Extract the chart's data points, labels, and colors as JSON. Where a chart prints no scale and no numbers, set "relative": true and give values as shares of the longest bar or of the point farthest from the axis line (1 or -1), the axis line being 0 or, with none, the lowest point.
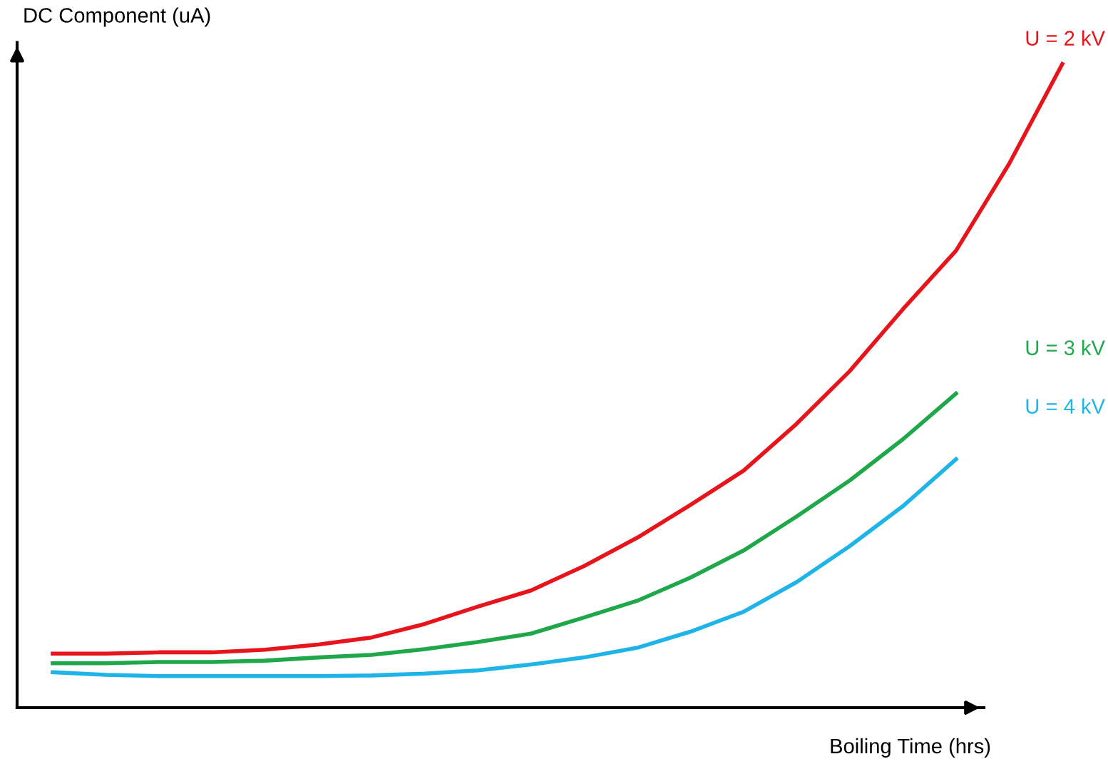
{
  "chart_data": {
    "type": "line",
    "relative": true,
    "xlabel": "Boiling Time (hrs)",
    "ylabel": "DC Component (uA)",
    "legend": false,
    "grid": false,
    "marker": "none",
    "line_style": "solid",
    "categories": [
      null,
      null,
      null,
      null,
      null,
      null,
      null,
      null,
      null,
      null,
      null,
      null,
      null,
      null,
      null,
      null,
      null,
      null,
      null,
      null
    ],
    "series": [
      {
        "name": "U = 2 kV",
        "color": "#e8141b",
        "values": [
          0.084,
          0.084,
          0.086,
          0.086,
          0.09,
          0.098,
          0.109,
          0.13,
          0.157,
          0.182,
          0.22,
          0.264,
          0.315,
          0.368,
          0.441,
          0.523,
          0.619,
          0.71,
          0.845,
          1.0
        ]
      },
      {
        "name": "U = 3 kV",
        "color": "#1fa84a",
        "values": [
          0.069,
          0.069,
          0.071,
          0.071,
          0.073,
          0.078,
          0.082,
          0.091,
          0.102,
          0.115,
          0.14,
          0.166,
          0.202,
          0.244,
          0.297,
          0.353,
          0.417,
          0.488,
          null,
          null
        ]
      },
      {
        "name": "U = 4 kV",
        "color": "#1fb4e8",
        "values": [
          0.055,
          0.051,
          0.049,
          0.049,
          0.049,
          0.049,
          0.05,
          0.053,
          0.058,
          0.067,
          0.078,
          0.093,
          0.118,
          0.149,
          0.195,
          0.251,
          0.313,
          0.386,
          null,
          null
        ]
      }
    ]
  }
}
